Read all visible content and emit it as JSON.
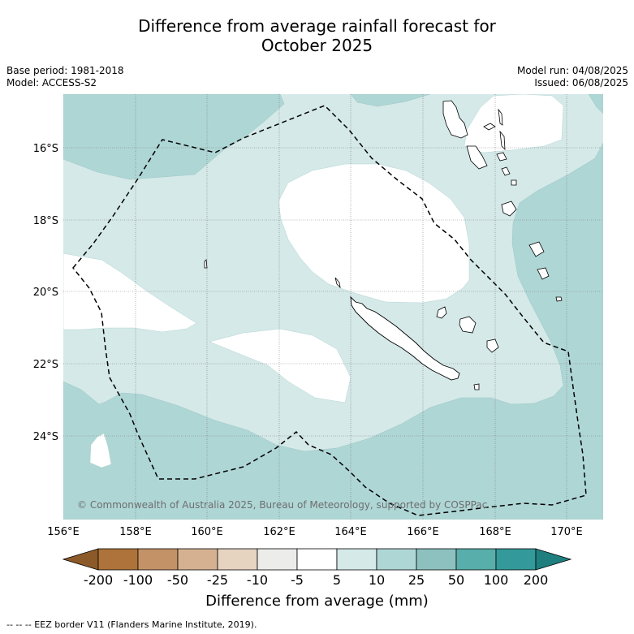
{
  "title_line1": "Difference from average rainfall forecast for",
  "title_line2": "October 2025",
  "base_period": "Base period: 1981-2018",
  "model": "Model: ACCESS-S2",
  "model_run": "Model run: 04/08/2025",
  "issued": "Issued: 06/08/2025",
  "lat_labels": [
    "16°S",
    "18°S",
    "20°S",
    "22°S",
    "24°S"
  ],
  "lon_labels": [
    "156°E",
    "158°E",
    "160°E",
    "162°E",
    "164°E",
    "166°E",
    "168°E",
    "170°E"
  ],
  "copyright": "© Commonwealth of Australia 2025, Bureau of Meteorology, supported by COSPPac",
  "colorbar": {
    "ticks": [
      "-200",
      "-100",
      "-50",
      "-25",
      "-10",
      "-5",
      "5",
      "10",
      "25",
      "50",
      "100",
      "200"
    ],
    "colors": [
      "#8c5a28",
      "#ad733a",
      "#c49267",
      "#d5b192",
      "#e6d3c0",
      "#ececea",
      "#ffffff",
      "#d4e9e8",
      "#aed6d5",
      "#8dc1c0",
      "#57aeab",
      "#33999a",
      "#1e7f7e"
    ],
    "label": "Difference from average (mm)"
  },
  "footnote": "--  --  -- EEZ border V11 (Flanders Marine Institute, 2019)."
}
